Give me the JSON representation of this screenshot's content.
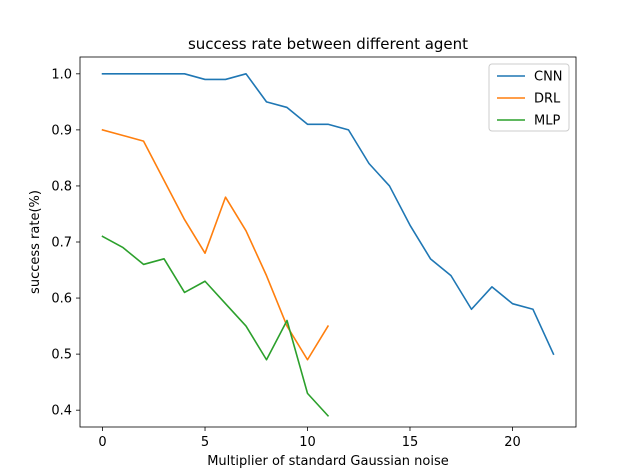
{
  "chart_data": {
    "type": "line",
    "title": "success rate between different agent",
    "xlabel": "Multiplier of standard Gaussian noise",
    "ylabel": "success rate(%)",
    "xlim": [
      -1.1,
      23.1
    ],
    "ylim": [
      0.37,
      1.03
    ],
    "xticks": [
      0,
      5,
      10,
      15,
      20
    ],
    "yticks": [
      0.4,
      0.5,
      0.6,
      0.7,
      0.8,
      0.9,
      1.0
    ],
    "xtick_labels": [
      "0",
      "5",
      "10",
      "15",
      "20"
    ],
    "ytick_labels": [
      "0.4",
      "0.5",
      "0.6",
      "0.7",
      "0.8",
      "0.9",
      "1.0"
    ],
    "grid": false,
    "legend_position": "top-right",
    "series": [
      {
        "name": "CNN",
        "color": "#1f77b4",
        "x": [
          0,
          1,
          2,
          3,
          4,
          5,
          6,
          7,
          8,
          9,
          10,
          11,
          12,
          13,
          14,
          15,
          16,
          17,
          18,
          19,
          20,
          21,
          22
        ],
        "y": [
          1.0,
          1.0,
          1.0,
          1.0,
          1.0,
          0.99,
          0.99,
          1.0,
          0.95,
          0.94,
          0.91,
          0.91,
          0.9,
          0.84,
          0.8,
          0.73,
          0.67,
          0.64,
          0.58,
          0.62,
          0.59,
          0.58,
          0.5
        ]
      },
      {
        "name": "DRL",
        "color": "#ff7f0e",
        "x": [
          0,
          1,
          2,
          3,
          4,
          5,
          6,
          7,
          8,
          9,
          10,
          11
        ],
        "y": [
          0.9,
          0.89,
          0.88,
          0.81,
          0.74,
          0.68,
          0.78,
          0.72,
          0.64,
          0.55,
          0.49,
          0.55
        ]
      },
      {
        "name": "MLP",
        "color": "#2ca02c",
        "x": [
          0,
          1,
          2,
          3,
          4,
          5,
          6,
          7,
          8,
          9,
          10,
          11
        ],
        "y": [
          0.71,
          0.69,
          0.66,
          0.67,
          0.61,
          0.63,
          0.59,
          0.55,
          0.49,
          0.56,
          0.43,
          0.39
        ]
      }
    ]
  }
}
